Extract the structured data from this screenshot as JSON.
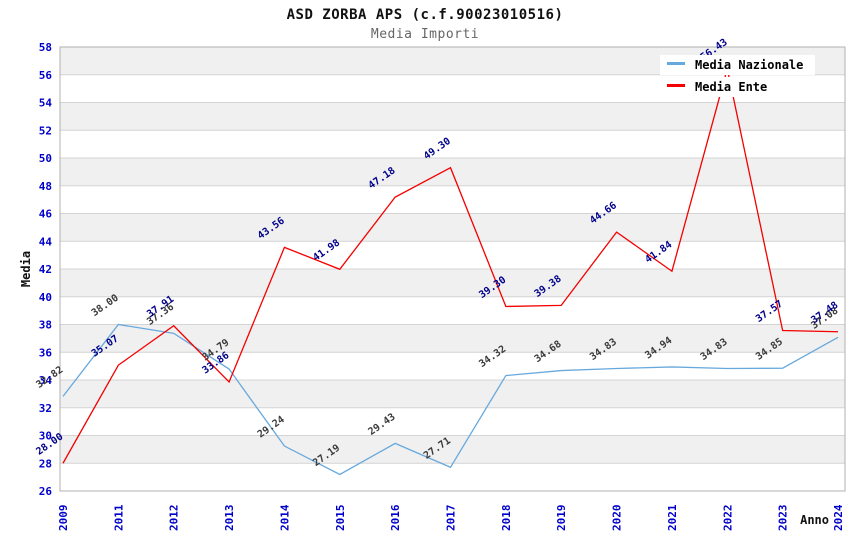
{
  "chart_data": {
    "type": "line",
    "title": "ASD ZORBA APS (c.f.90023010516)",
    "subtitle": "Media Importi",
    "xlabel": "Anno",
    "ylabel": "Media",
    "ylim": [
      26,
      58
    ],
    "yticks": [
      26,
      28,
      30,
      32,
      34,
      36,
      38,
      40,
      42,
      44,
      46,
      48,
      50,
      52,
      54,
      56,
      58
    ],
    "categories": [
      "2009",
      "2011",
      "2012",
      "2013",
      "2014",
      "2015",
      "2016",
      "2017",
      "2018",
      "2019",
      "2020",
      "2021",
      "2022",
      "2023",
      "2024"
    ],
    "series": [
      {
        "name": "Media Nazionale",
        "color": "#68a9dd",
        "label_color": "#3a3a3a",
        "values": [
          32.82,
          38.0,
          37.36,
          34.79,
          29.24,
          27.19,
          29.43,
          27.71,
          34.32,
          34.68,
          34.83,
          34.94,
          34.83,
          34.85,
          37.08
        ]
      },
      {
        "name": "Media Ente",
        "color": "#f40000",
        "label_color": "#00008b",
        "values": [
          28.0,
          35.07,
          37.91,
          33.86,
          43.56,
          41.98,
          47.18,
          49.3,
          39.3,
          39.38,
          44.66,
          41.84,
          56.43,
          37.57,
          37.48
        ]
      }
    ],
    "legend_position": "top-right",
    "grid": true,
    "stripes": true,
    "style": {
      "stripe_color": "#f0f0f0",
      "stripe_alt_color": "#ffffff",
      "grid_color": "#d4d4d4",
      "border_color": "#b0b0b0",
      "tick_label_color": "#0000cc",
      "title_color": "#111111",
      "subtitle_color": "#666666"
    }
  }
}
